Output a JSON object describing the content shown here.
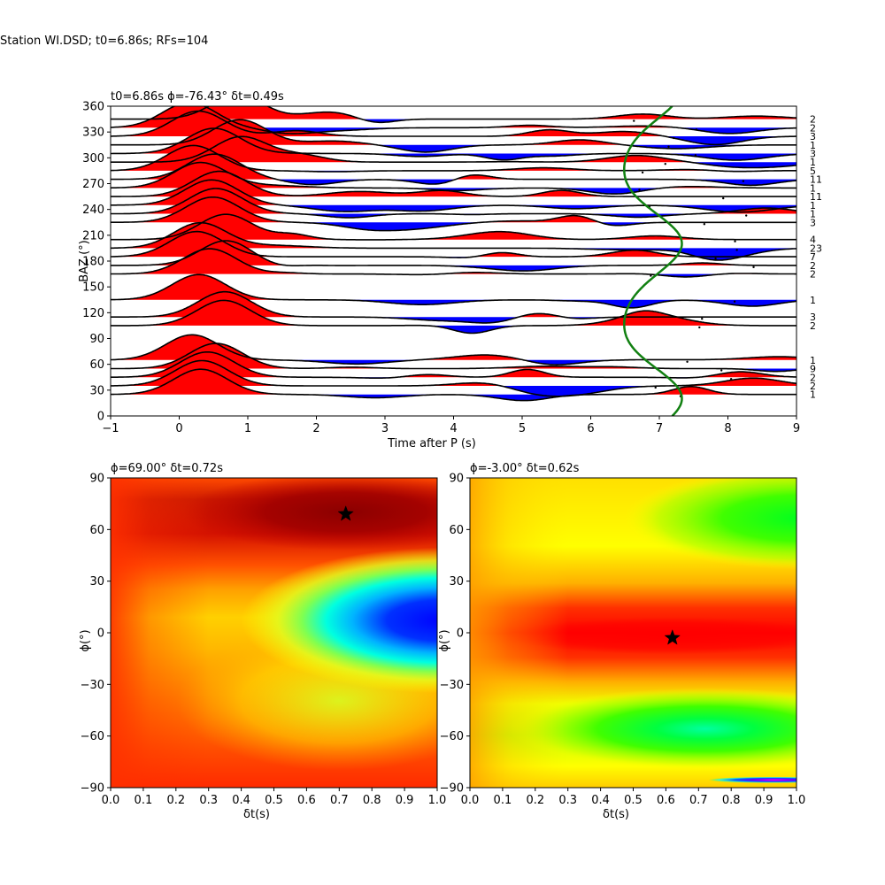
{
  "figure_title": "Station WI.DSD; t0=6.86s; RFs=104",
  "chart_data": [
    {
      "type": "line",
      "title": "t0=6.86s ϕ=-76.43° δt=0.49s",
      "xlabel": "Time after P (s)",
      "ylabel": "BAZ (°)",
      "xlim": [
        -1,
        9
      ],
      "ylim": [
        0,
        360
      ],
      "xticks": [
        -1,
        0,
        1,
        2,
        3,
        4,
        5,
        6,
        7,
        8,
        9
      ],
      "yticks": [
        0,
        30,
        60,
        90,
        120,
        150,
        180,
        210,
        240,
        270,
        300,
        330,
        360
      ],
      "positive_fill": "#ff0000",
      "negative_fill": "#0000ff",
      "trace_color": "#000000",
      "moveout_color": "#118011",
      "bins": [
        {
          "baz": 345,
          "count": "2"
        },
        {
          "baz": 335,
          "count": "2"
        },
        {
          "baz": 325,
          "count": "3"
        },
        {
          "baz": 315,
          "count": "1"
        },
        {
          "baz": 305,
          "count": "3"
        },
        {
          "baz": 295,
          "count": "1"
        },
        {
          "baz": 285,
          "count": "5"
        },
        {
          "baz": 275,
          "count": "11"
        },
        {
          "baz": 265,
          "count": "1"
        },
        {
          "baz": 255,
          "count": "11"
        },
        {
          "baz": 245,
          "count": "1"
        },
        {
          "baz": 235,
          "count": "1"
        },
        {
          "baz": 225,
          "count": "3"
        },
        {
          "baz": 205,
          "count": "4"
        },
        {
          "baz": 195,
          "count": "23"
        },
        {
          "baz": 185,
          "count": "7"
        },
        {
          "baz": 175,
          "count": "2"
        },
        {
          "baz": 165,
          "count": "2"
        },
        {
          "baz": 135,
          "count": "1"
        },
        {
          "baz": 115,
          "count": "3"
        },
        {
          "baz": 105,
          "count": "2"
        },
        {
          "baz": 65,
          "count": "1"
        },
        {
          "baz": 55,
          "count": "9"
        },
        {
          "baz": 45,
          "count": "2"
        },
        {
          "baz": 35,
          "count": "2"
        },
        {
          "baz": 25,
          "count": "1"
        }
      ]
    },
    {
      "type": "heatmap",
      "title": "ϕ=69.00° δt=0.72s",
      "xlabel": "δt(s)",
      "ylabel": "ϕ(°)",
      "xlim": [
        0,
        1
      ],
      "ylim": [
        -90,
        90
      ],
      "xticks": [
        0.0,
        0.1,
        0.2,
        0.3,
        0.4,
        0.5,
        0.6,
        0.7,
        0.8,
        0.9,
        1.0
      ],
      "yticks": [
        -90,
        -60,
        -30,
        0,
        30,
        60,
        90
      ],
      "best": {
        "dt": 0.72,
        "phi": 69
      }
    },
    {
      "type": "heatmap",
      "title": "ϕ=-3.00° δt=0.62s",
      "xlabel": "δt(s)",
      "ylabel": "ϕ(°)",
      "xlim": [
        0,
        1
      ],
      "ylim": [
        -90,
        90
      ],
      "xticks": [
        0.0,
        0.1,
        0.2,
        0.3,
        0.4,
        0.5,
        0.6,
        0.7,
        0.8,
        0.9,
        1.0
      ],
      "yticks": [
        -90,
        -60,
        -30,
        0,
        30,
        60,
        90
      ],
      "best": {
        "dt": 0.62,
        "phi": -3
      }
    }
  ]
}
